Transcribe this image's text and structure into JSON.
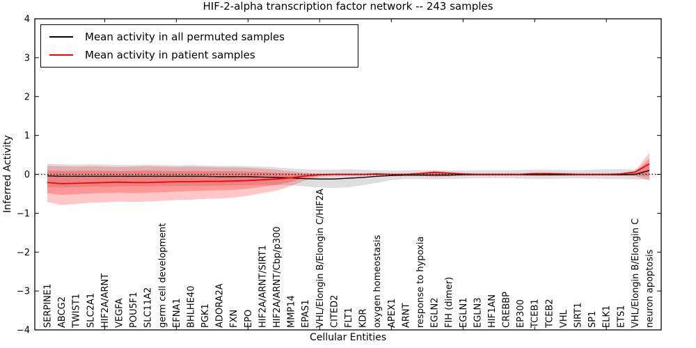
{
  "title": "HIF-2-alpha transcription factor network -- 243 samples",
  "legend": {
    "items": [
      {
        "label": "Mean activity in all permuted samples",
        "color": "#000000"
      },
      {
        "label": "Mean activity in patient samples",
        "color": "#ff0000"
      }
    ]
  },
  "chart_data": {
    "type": "line",
    "title": "HIF-2-alpha transcription factor network -- 243 samples",
    "xlabel": "Cellular Entities",
    "ylabel": "Inferred Activity",
    "ylim": [
      -4,
      4
    ],
    "yticks": [
      4,
      3,
      2,
      1,
      0,
      -1,
      -2,
      -3,
      -4
    ],
    "xticks_at_indices": [
      4,
      9,
      14,
      19,
      24,
      29,
      34,
      39
    ],
    "grid": false,
    "legend_position": "upper left",
    "reference_line": {
      "y": 0,
      "style": "dotted",
      "color": "#000000"
    },
    "categories": [
      "SERPINE1",
      "ABCG2",
      "TWIST1",
      "SLC2A1",
      "HIF2A/ARNT",
      "VEGFA",
      "POU5F1",
      "SLC11A2",
      "germ cell development",
      "EFNA1",
      "BHLHE40",
      "PGK1",
      "ADORA2A",
      "FXN",
      "EPO",
      "HIF2A/ARNT/SIRT1",
      "HIF2A/ARNT/Cbp/p300",
      "MMP14",
      "EPAS1",
      "VHL/Elongin B/Elongin C/HIF2A",
      "CITED2",
      "FLT1",
      "KDR",
      "oxygen homeostasis",
      "APEX1",
      "ARNT",
      "response to hypoxia",
      "EGLN2",
      "FIH (dimer)",
      "EGLN1",
      "EGLN3",
      "HIF1AN",
      "CREBBP",
      "EP300",
      "TCEB1",
      "TCEB2",
      "VHL",
      "SIRT1",
      "SP1",
      "ELK1",
      "ETS1",
      "VHL/Elongin B/Elongin C",
      "neuron apoptosis"
    ],
    "series": [
      {
        "name": "Mean activity in all permuted samples",
        "color": "#000000",
        "width": 1.4,
        "values": [
          -0.04,
          -0.05,
          -0.05,
          -0.05,
          -0.05,
          -0.05,
          -0.05,
          -0.05,
          -0.05,
          -0.05,
          -0.05,
          -0.05,
          -0.06,
          -0.06,
          -0.06,
          -0.07,
          -0.08,
          -0.09,
          -0.11,
          -0.12,
          -0.12,
          -0.1,
          -0.08,
          -0.05,
          -0.03,
          -0.02,
          -0.02,
          -0.02,
          -0.02,
          -0.01,
          -0.01,
          -0.01,
          -0.01,
          -0.01,
          -0.01,
          -0.01,
          -0.01,
          -0.01,
          -0.01,
          -0.01,
          -0.01,
          0.0,
          0.1
        ]
      },
      {
        "name": "Mean activity in patient samples",
        "color": "#ff0000",
        "width": 1.8,
        "values": [
          -0.21,
          -0.24,
          -0.23,
          -0.22,
          -0.21,
          -0.2,
          -0.21,
          -0.21,
          -0.2,
          -0.19,
          -0.19,
          -0.18,
          -0.18,
          -0.17,
          -0.16,
          -0.14,
          -0.12,
          -0.09,
          -0.04,
          -0.01,
          0.0,
          0.0,
          0.0,
          0.01,
          0.0,
          0.0,
          0.02,
          0.05,
          0.03,
          0.01,
          0.0,
          0.0,
          0.0,
          0.0,
          0.02,
          0.02,
          0.01,
          0.0,
          0.0,
          0.0,
          0.01,
          0.06,
          0.27
        ]
      }
    ],
    "bands": [
      {
        "name": "permuted-range",
        "color": "rgba(0,0,0,0.13)",
        "upper": [
          0.27,
          0.26,
          0.25,
          0.26,
          0.25,
          0.24,
          0.24,
          0.25,
          0.24,
          0.23,
          0.24,
          0.23,
          0.22,
          0.22,
          0.21,
          0.2,
          0.18,
          0.15,
          0.13,
          0.12,
          0.12,
          0.13,
          0.12,
          0.1,
          0.1,
          0.1,
          0.11,
          0.1,
          0.1,
          0.1,
          0.1,
          0.1,
          0.1,
          0.11,
          0.12,
          0.12,
          0.11,
          0.1,
          0.12,
          0.13,
          0.13,
          0.13,
          0.22
        ],
        "lower": [
          -0.33,
          -0.34,
          -0.33,
          -0.32,
          -0.32,
          -0.31,
          -0.31,
          -0.31,
          -0.3,
          -0.3,
          -0.3,
          -0.29,
          -0.29,
          -0.28,
          -0.28,
          -0.27,
          -0.27,
          -0.28,
          -0.31,
          -0.34,
          -0.35,
          -0.33,
          -0.28,
          -0.22,
          -0.15,
          -0.12,
          -0.12,
          -0.13,
          -0.12,
          -0.11,
          -0.1,
          -0.1,
          -0.1,
          -0.11,
          -0.12,
          -0.12,
          -0.11,
          -0.1,
          -0.11,
          -0.12,
          -0.12,
          -0.13,
          -0.14
        ]
      },
      {
        "name": "patient-range-outer",
        "color": "rgba(255,0,0,0.22)",
        "upper": [
          0.22,
          0.21,
          0.2,
          0.21,
          0.2,
          0.19,
          0.2,
          0.21,
          0.2,
          0.19,
          0.2,
          0.19,
          0.18,
          0.18,
          0.17,
          0.15,
          0.12,
          0.08,
          0.04,
          0.02,
          0.02,
          0.02,
          0.02,
          0.02,
          0.01,
          0.01,
          0.05,
          0.09,
          0.06,
          0.02,
          0.02,
          0.02,
          0.02,
          0.02,
          0.04,
          0.04,
          0.03,
          0.02,
          0.02,
          0.02,
          0.03,
          0.08,
          0.55
        ],
        "lower": [
          -0.71,
          -0.79,
          -0.76,
          -0.73,
          -0.72,
          -0.7,
          -0.71,
          -0.7,
          -0.68,
          -0.66,
          -0.65,
          -0.63,
          -0.62,
          -0.6,
          -0.55,
          -0.48,
          -0.42,
          -0.3,
          -0.15,
          -0.06,
          -0.04,
          -0.04,
          -0.04,
          -0.03,
          -0.02,
          -0.02,
          -0.04,
          -0.06,
          -0.05,
          -0.03,
          -0.02,
          -0.02,
          -0.02,
          -0.02,
          -0.04,
          -0.04,
          -0.03,
          -0.02,
          -0.02,
          -0.02,
          -0.03,
          -0.05,
          -0.15
        ]
      },
      {
        "name": "patient-range-inner",
        "color": "rgba(255,0,0,0.24)",
        "upper": [
          0.1,
          0.09,
          0.09,
          0.1,
          0.09,
          0.08,
          0.09,
          0.1,
          0.09,
          0.08,
          0.09,
          0.08,
          0.08,
          0.08,
          0.07,
          0.06,
          0.04,
          0.02,
          0.01,
          0.01,
          0.01,
          0.01,
          0.01,
          0.01,
          0.0,
          0.0,
          0.03,
          0.06,
          0.04,
          0.01,
          0.01,
          0.01,
          0.01,
          0.01,
          0.03,
          0.03,
          0.02,
          0.01,
          0.01,
          0.01,
          0.02,
          0.05,
          0.4
        ],
        "lower": [
          -0.48,
          -0.53,
          -0.51,
          -0.49,
          -0.48,
          -0.47,
          -0.48,
          -0.47,
          -0.46,
          -0.44,
          -0.43,
          -0.42,
          -0.41,
          -0.4,
          -0.37,
          -0.32,
          -0.27,
          -0.19,
          -0.09,
          -0.03,
          -0.02,
          -0.02,
          -0.02,
          -0.02,
          -0.01,
          -0.01,
          -0.02,
          -0.04,
          -0.03,
          -0.02,
          -0.01,
          -0.01,
          -0.01,
          -0.01,
          -0.02,
          -0.02,
          -0.02,
          -0.01,
          -0.01,
          -0.01,
          -0.02,
          -0.03,
          -0.05
        ]
      }
    ]
  }
}
